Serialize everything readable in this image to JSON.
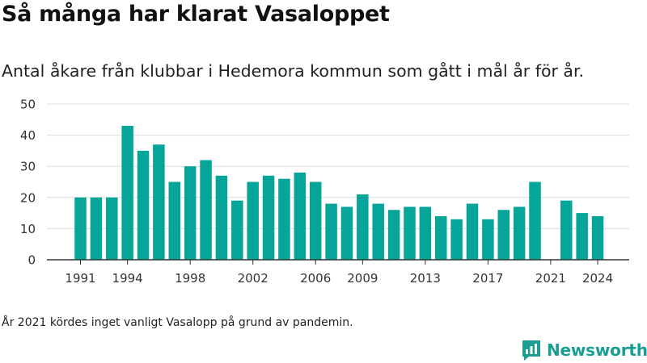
{
  "title": "Så många har klarat Vasaloppet",
  "subtitle": "Antal åkare från klubbar i Hedemora kommun som gått i mål år för år.",
  "footnote": "År 2021 kördes inget vanligt Vasalopp på grund av pandemin.",
  "brand": {
    "name": "Newsworthy",
    "icon": "newsworthy-logo-icon",
    "color": "#1a9e93"
  },
  "chart_data": {
    "type": "bar",
    "title": "Så många har klarat Vasaloppet",
    "subtitle": "Antal åkare från klubbar i Hedemora kommun som gått i mål år för år.",
    "xlabel": "",
    "ylabel": "",
    "x": [
      1991,
      1992,
      1993,
      1994,
      1995,
      1996,
      1997,
      1998,
      1999,
      2000,
      2001,
      2002,
      2003,
      2004,
      2005,
      2006,
      2007,
      2008,
      2009,
      2010,
      2011,
      2012,
      2013,
      2014,
      2015,
      2016,
      2017,
      2018,
      2019,
      2020,
      2021,
      2022,
      2023,
      2024
    ],
    "values": [
      20,
      20,
      20,
      43,
      35,
      37,
      25,
      30,
      32,
      27,
      19,
      25,
      27,
      26,
      28,
      25,
      18,
      17,
      21,
      18,
      16,
      17,
      17,
      14,
      13,
      18,
      13,
      16,
      17,
      25,
      null,
      19,
      15,
      14
    ],
    "xticks": [
      "1991",
      "1994",
      "1998",
      "2002",
      "2006",
      "2009",
      "2013",
      "2017",
      "2021",
      "2024"
    ],
    "yticks": [
      "0",
      "10",
      "20",
      "30",
      "40",
      "50"
    ],
    "ylim": [
      0,
      50
    ],
    "grid": true,
    "bar_color": "#05a59a"
  }
}
